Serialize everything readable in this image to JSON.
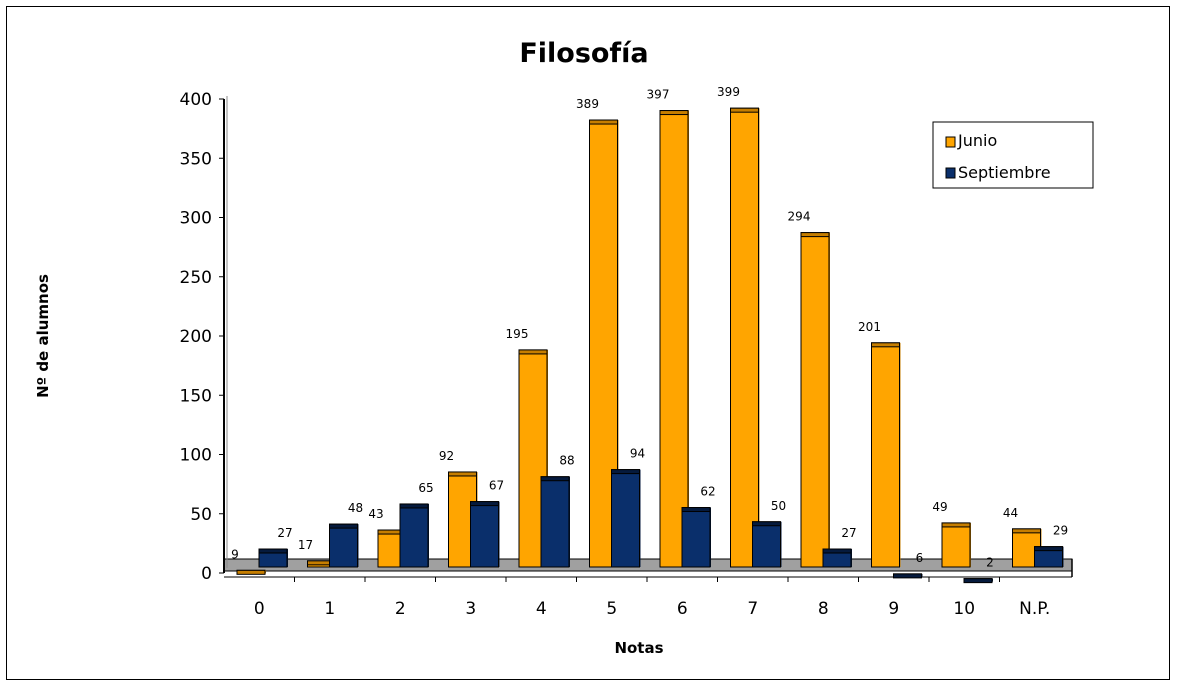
{
  "chart_data": {
    "type": "bar",
    "title": "Filosofía",
    "xlabel": "Notas",
    "ylabel": "Nº de alumnos",
    "categories": [
      "0",
      "1",
      "2",
      "3",
      "4",
      "5",
      "6",
      "7",
      "8",
      "9",
      "10",
      "N.P."
    ],
    "series": [
      {
        "name": "Junio",
        "values": [
          9,
          17,
          43,
          92,
          195,
          389,
          397,
          399,
          294,
          201,
          49,
          44
        ],
        "color": "#FFA500"
      },
      {
        "name": "Septiembre",
        "values": [
          27,
          48,
          65,
          67,
          88,
          94,
          62,
          50,
          27,
          6,
          2,
          29
        ],
        "color": "#0A2F6B"
      }
    ],
    "ylim": [
      0,
      400
    ],
    "yticks": [
      "0",
      "50",
      "100",
      "150",
      "200",
      "250",
      "300",
      "350",
      "400"
    ],
    "legend_position": "top-right",
    "grid": false,
    "colors": {
      "floor": "#A0A0A0",
      "border": "#000000"
    }
  }
}
